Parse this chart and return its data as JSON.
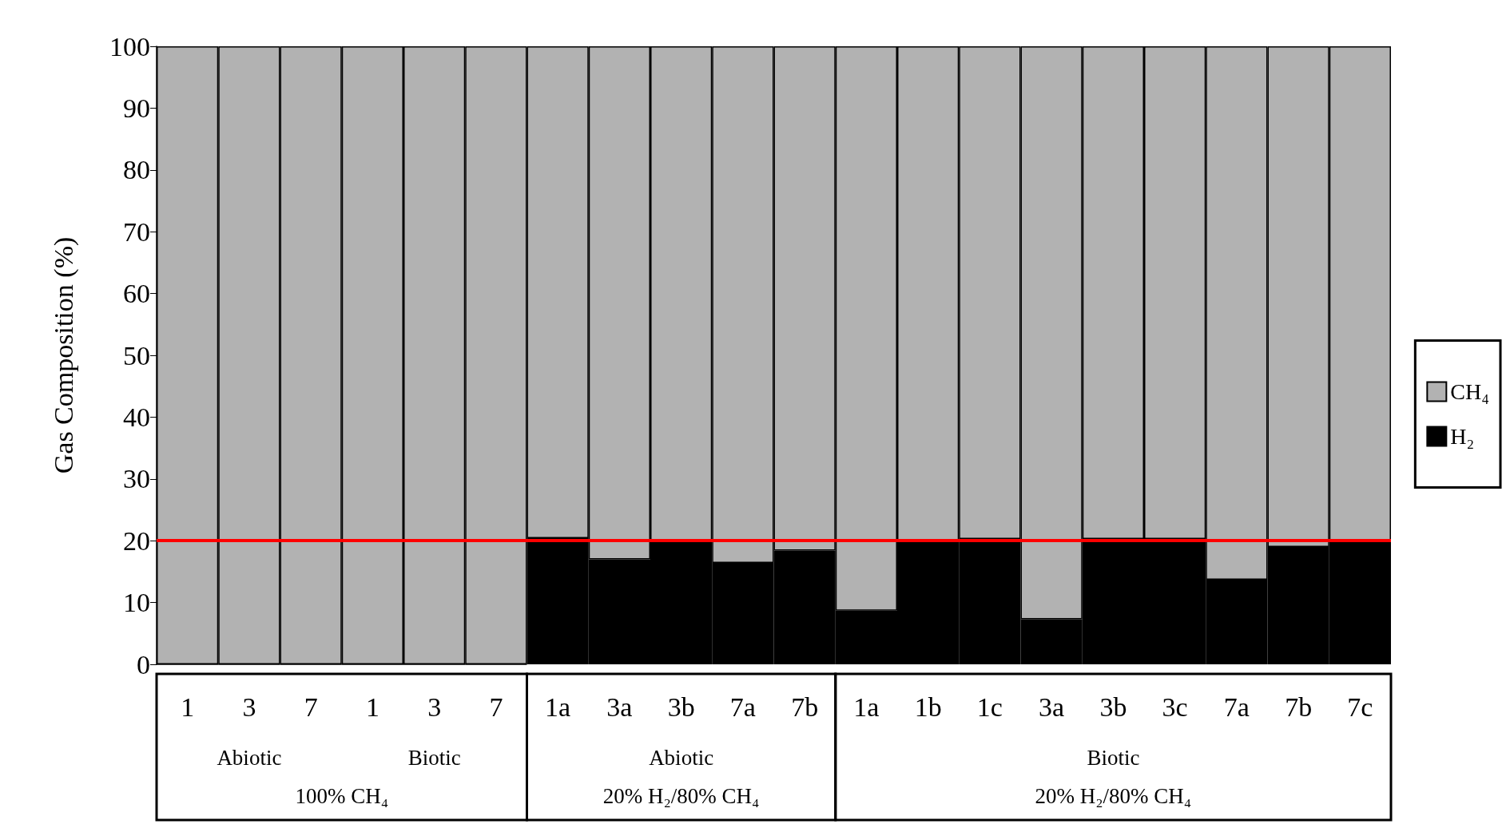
{
  "chart_data": {
    "type": "bar",
    "stacked": true,
    "ylabel": "Gas Composition (%)",
    "categories": [
      "1",
      "3",
      "7",
      "1",
      "3",
      "7",
      "1a",
      "3a",
      "3b",
      "7a",
      "7b",
      "1a",
      "1b",
      "1c",
      "3a",
      "3b",
      "3c",
      "7a",
      "7b",
      "7c"
    ],
    "series": [
      {
        "name": "H₂",
        "color": "#000000",
        "values": [
          0,
          0,
          0,
          0,
          0,
          0,
          20.4,
          17.0,
          20,
          16.4,
          18.4,
          8.7,
          20,
          20.3,
          7.3,
          20.3,
          20.3,
          13.7,
          19.0,
          20
        ]
      },
      {
        "name": "CH₄",
        "color": "#b2b2b2",
        "values": [
          100,
          100,
          100,
          100,
          100,
          100,
          79.6,
          83.0,
          80,
          83.6,
          81.6,
          91.3,
          80,
          79.7,
          92.7,
          79.7,
          79.7,
          86.3,
          81.0,
          80
        ]
      }
    ],
    "ylim": [
      0,
      100
    ],
    "yticks": [
      0,
      10,
      20,
      30,
      40,
      50,
      60,
      70,
      80,
      90,
      100
    ],
    "grid": false,
    "legend": "right",
    "ref_lines": [
      {
        "axis": "y",
        "value": 20,
        "color": "#ff0000",
        "line_style": "solid"
      }
    ],
    "annotations": [
      "Abiotic",
      "Biotic",
      "100% CH₄",
      "Abiotic",
      "20% H₂/80% CH₄",
      "Biotic",
      "20% H₂/80% CH₄"
    ]
  }
}
